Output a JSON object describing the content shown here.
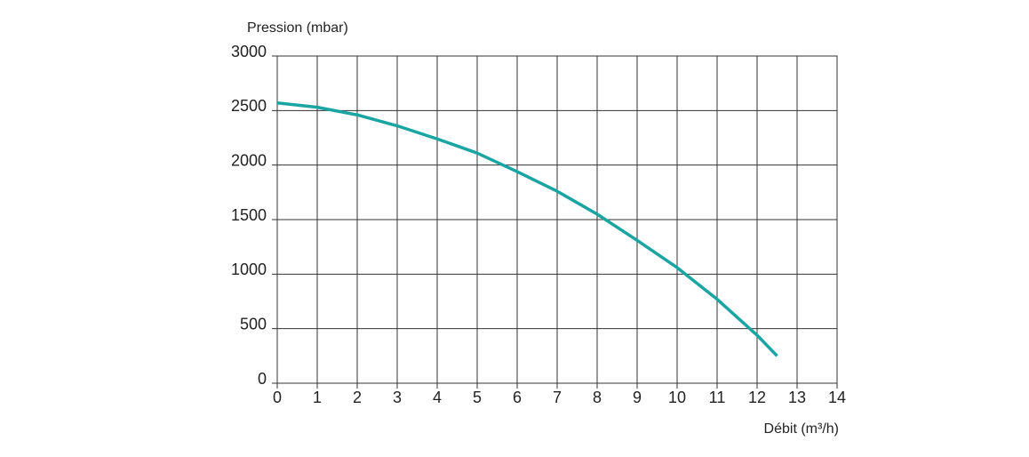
{
  "chart_data": {
    "type": "line",
    "y_label": "Pression (mbar)",
    "x_label": "Débit (m³/h)",
    "x": [
      0,
      1,
      2,
      3,
      4,
      5,
      6,
      7,
      8,
      9,
      10,
      11,
      12,
      12.5
    ],
    "series": [
      {
        "color": "#1aa5a3",
        "values": [
          2570,
          2530,
          2460,
          2360,
          2240,
          2110,
          1940,
          1760,
          1550,
          1310,
          1060,
          770,
          440,
          250
        ]
      }
    ],
    "xlim": [
      0,
      14
    ],
    "xticks": [
      0,
      1,
      2,
      3,
      4,
      5,
      6,
      7,
      8,
      9,
      10,
      11,
      12,
      13,
      14
    ],
    "ylim": [
      0,
      3000
    ],
    "yticks": [
      0,
      500,
      1000,
      1500,
      2000,
      2500,
      3000
    ],
    "grid": true
  }
}
